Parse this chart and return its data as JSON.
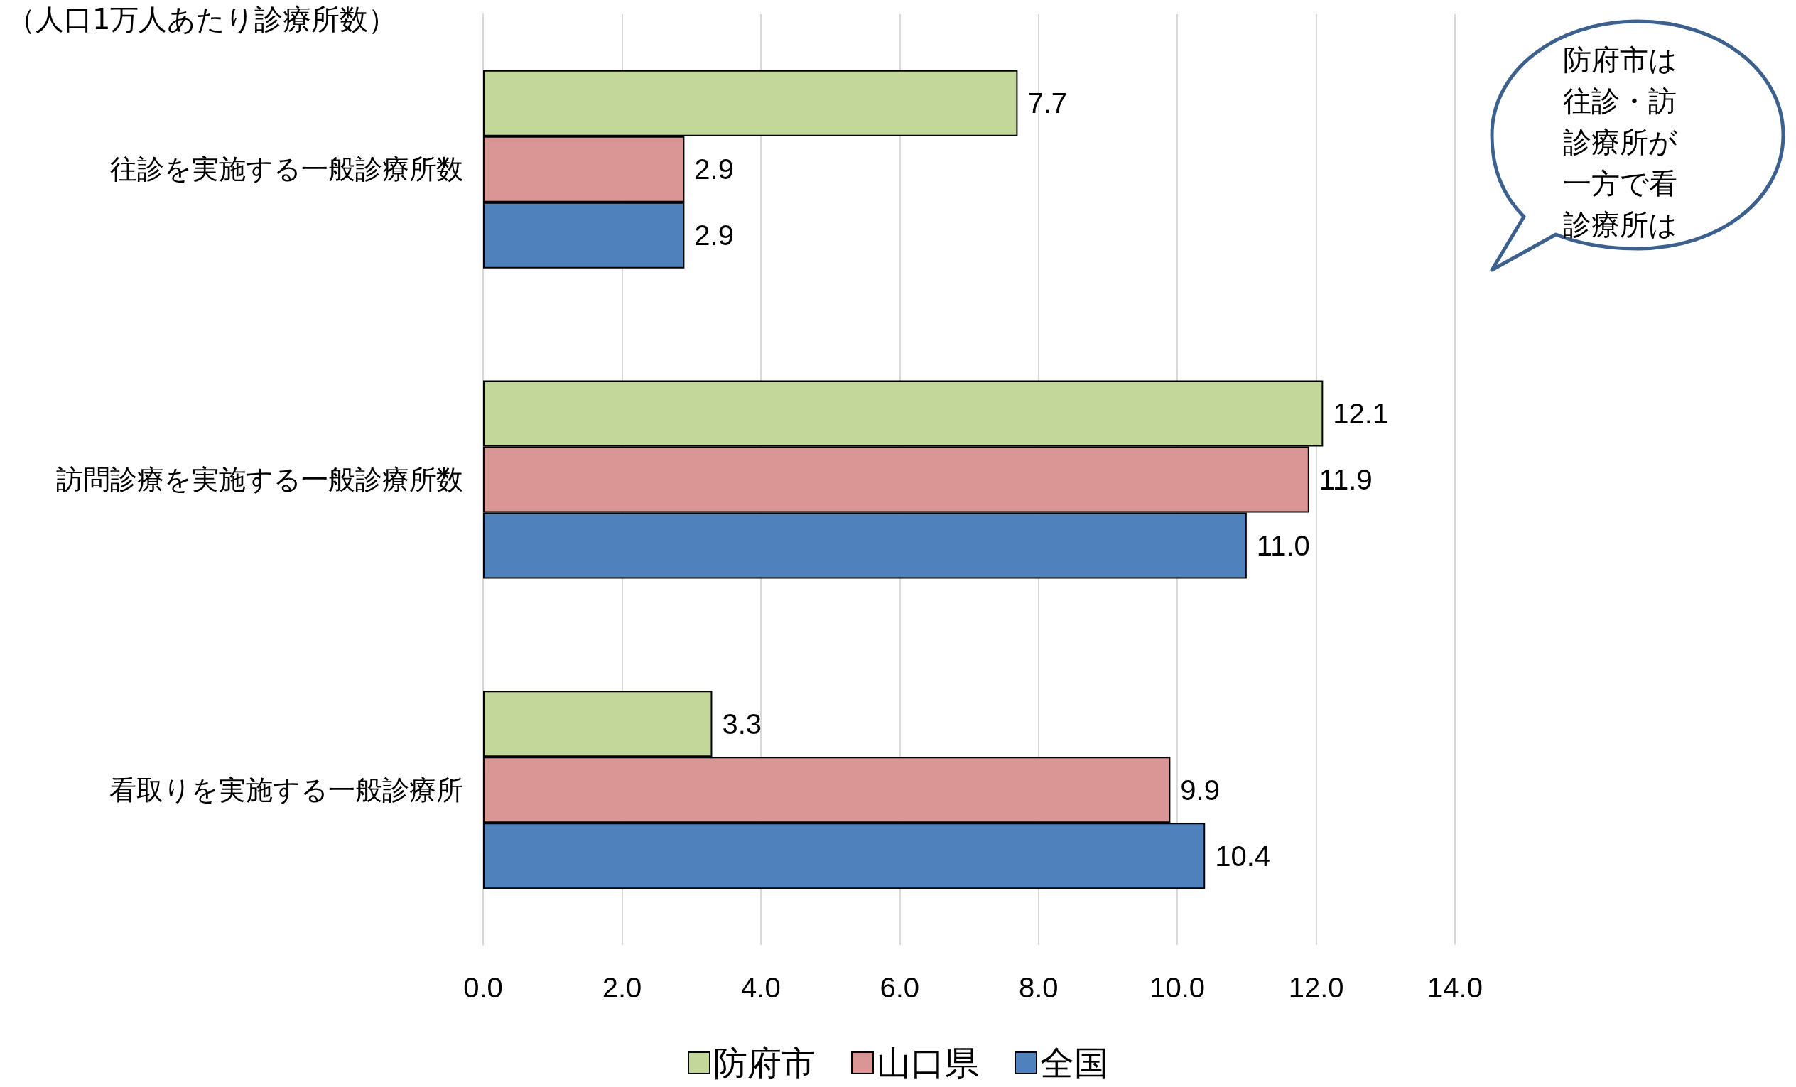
{
  "chart_data": {
    "type": "bar",
    "orientation": "horizontal",
    "title": "（人口1万人あたり診療所数）",
    "categories": [
      "往診を実施する一般診療所数",
      "訪問診療を実施する一般診療所数",
      "看取りを実施する一般診療所"
    ],
    "series": [
      {
        "name": "防府市",
        "color": "#c4d79b",
        "values": [
          7.7,
          12.1,
          3.3
        ],
        "value_labels": [
          "7.7",
          "12.1",
          "3.3"
        ]
      },
      {
        "name": "山口県",
        "color": "#da9694",
        "values": [
          2.9,
          11.9,
          9.9
        ],
        "value_labels": [
          "2.9",
          "11.9",
          "9.9"
        ]
      },
      {
        "name": "全国",
        "color": "#4f81bd",
        "values": [
          2.9,
          11.0,
          10.4
        ],
        "value_labels": [
          "2.9",
          "11.0",
          "10.4"
        ]
      }
    ],
    "xlim": [
      0,
      14
    ],
    "xticks": [
      {
        "value": 0,
        "label": "0.0"
      },
      {
        "value": 2,
        "label": "2.0"
      },
      {
        "value": 4,
        "label": "4.0"
      },
      {
        "value": 6,
        "label": "6.0"
      },
      {
        "value": 8,
        "label": "8.0"
      },
      {
        "value": 10,
        "label": "10.0"
      },
      {
        "value": 12,
        "label": "12.0"
      },
      {
        "value": 14,
        "label": "14.0"
      }
    ],
    "grid": "x",
    "legend": "bottom",
    "annotations": [
      "防府市は",
      "往診・訪",
      "診療所が",
      "一方で看",
      "診療所は"
    ]
  }
}
